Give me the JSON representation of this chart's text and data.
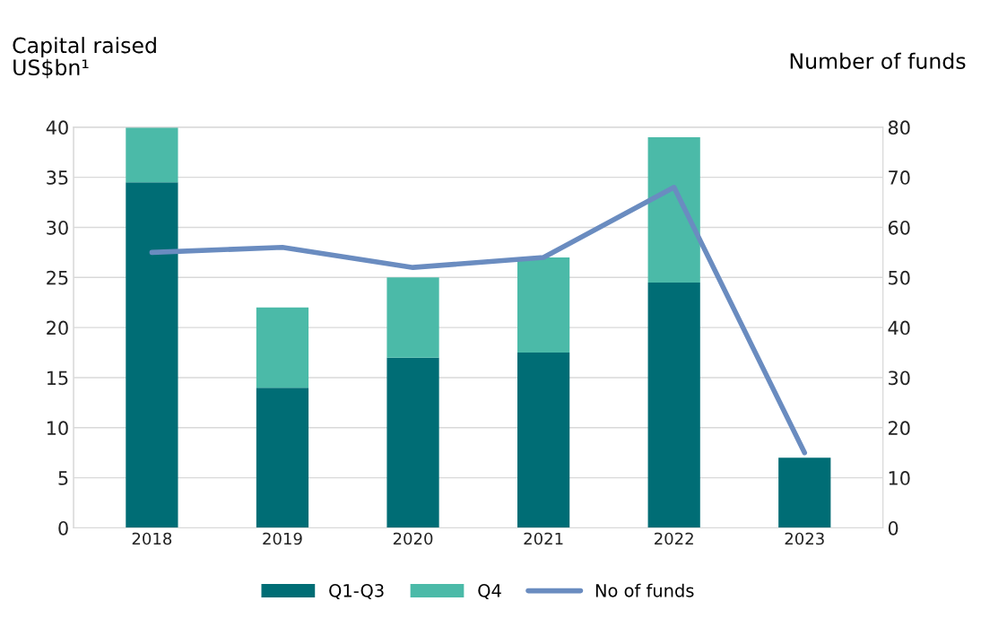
{
  "chart_data": {
    "type": "bar",
    "stacked": true,
    "categories": [
      "2018",
      "2019",
      "2020",
      "2021",
      "2022",
      "2023"
    ],
    "ylabel": "Capital raised\nUS$bn¹",
    "y2label": "Number of funds",
    "series": [
      {
        "name": "Q1-Q3",
        "color": "#006d75",
        "values": [
          34.5,
          14,
          17,
          17.5,
          24.5,
          7
        ]
      },
      {
        "name": "Q4",
        "color": "#4bbaa8",
        "values": [
          5.5,
          8,
          8,
          9.5,
          14.5,
          null
        ]
      },
      {
        "name": "No of funds",
        "type": "line",
        "axis": "y2",
        "color": "#6a8cc0",
        "values": [
          55,
          56,
          52,
          54,
          68,
          15
        ]
      }
    ],
    "ylim": [
      0,
      40
    ],
    "yticks": [
      0,
      5,
      10,
      15,
      20,
      25,
      30,
      35,
      40
    ],
    "y2lim": [
      0,
      80
    ],
    "y2ticks": [
      0,
      10,
      20,
      30,
      40,
      50,
      60,
      70,
      80
    ],
    "grid": "y",
    "legend": "bottom",
    "marker": "none",
    "line_style": "solid"
  }
}
